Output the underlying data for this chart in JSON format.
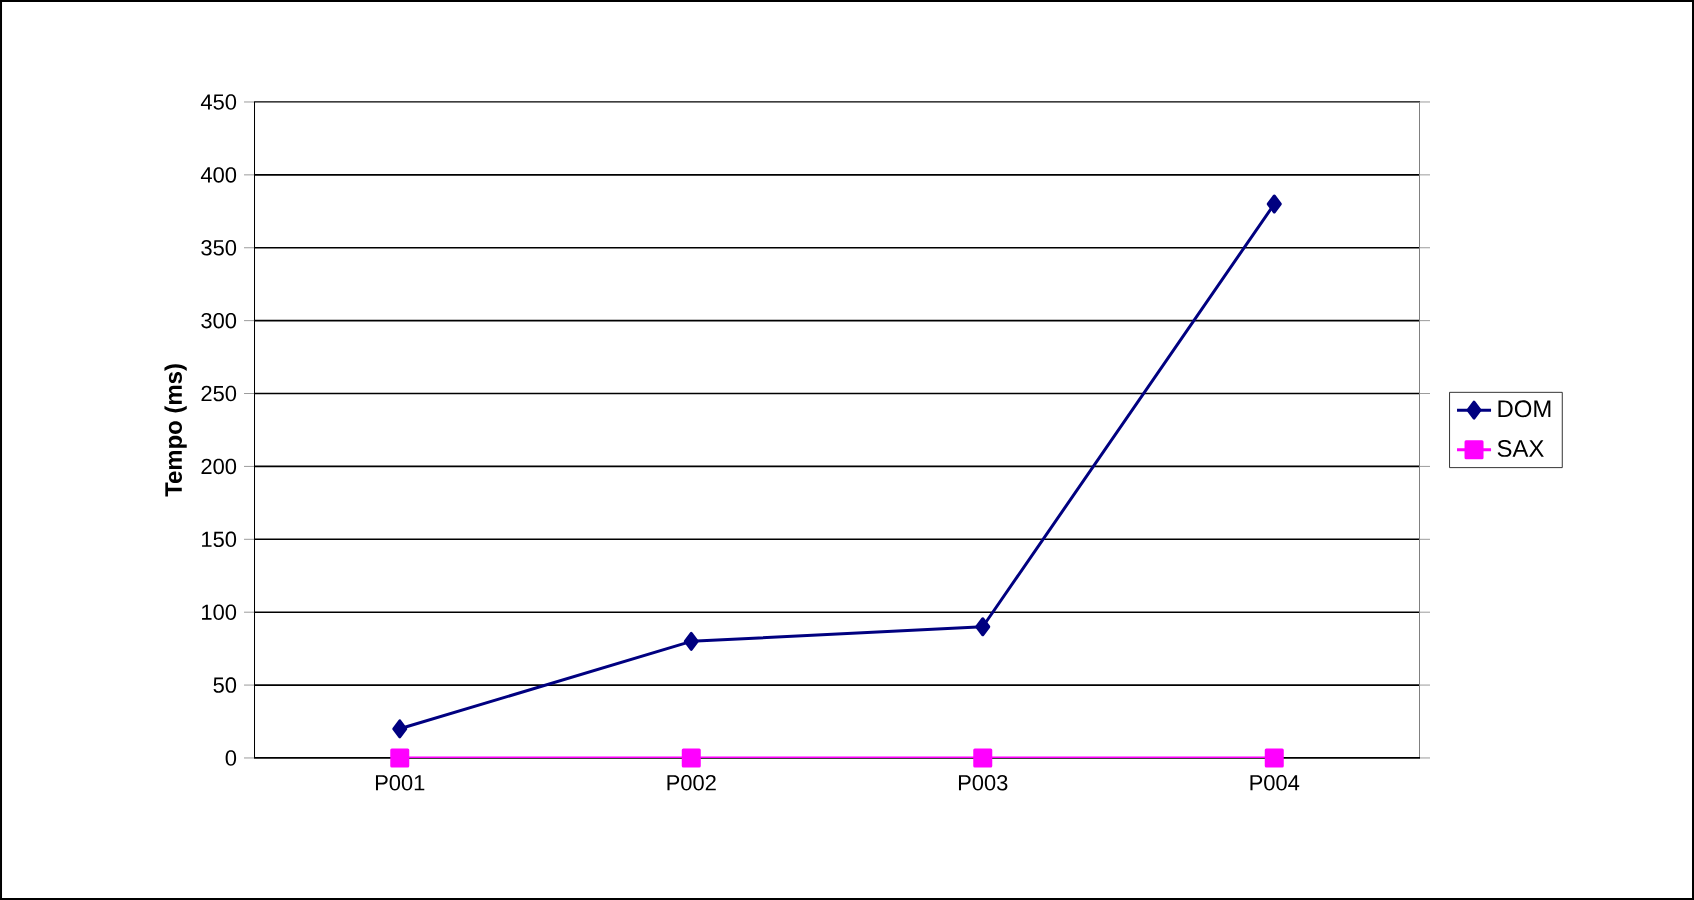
{
  "chart_data": {
    "type": "line",
    "ylabel": "Tempo (ms)",
    "categories": [
      "P001",
      "P002",
      "P003",
      "P004"
    ],
    "series": [
      {
        "name": "DOM",
        "color": "#000080",
        "marker": "diamond",
        "values": [
          20,
          80,
          90,
          380
        ]
      },
      {
        "name": "SAX",
        "color": "#ff00ff",
        "marker": "square",
        "values": [
          0,
          0,
          0,
          0
        ]
      }
    ],
    "ylim": [
      0,
      450
    ],
    "yticks": [
      0,
      50,
      100,
      150,
      200,
      250,
      300,
      350,
      400,
      450
    ],
    "grid": "y",
    "legend": "right",
    "line_style": "solid"
  }
}
